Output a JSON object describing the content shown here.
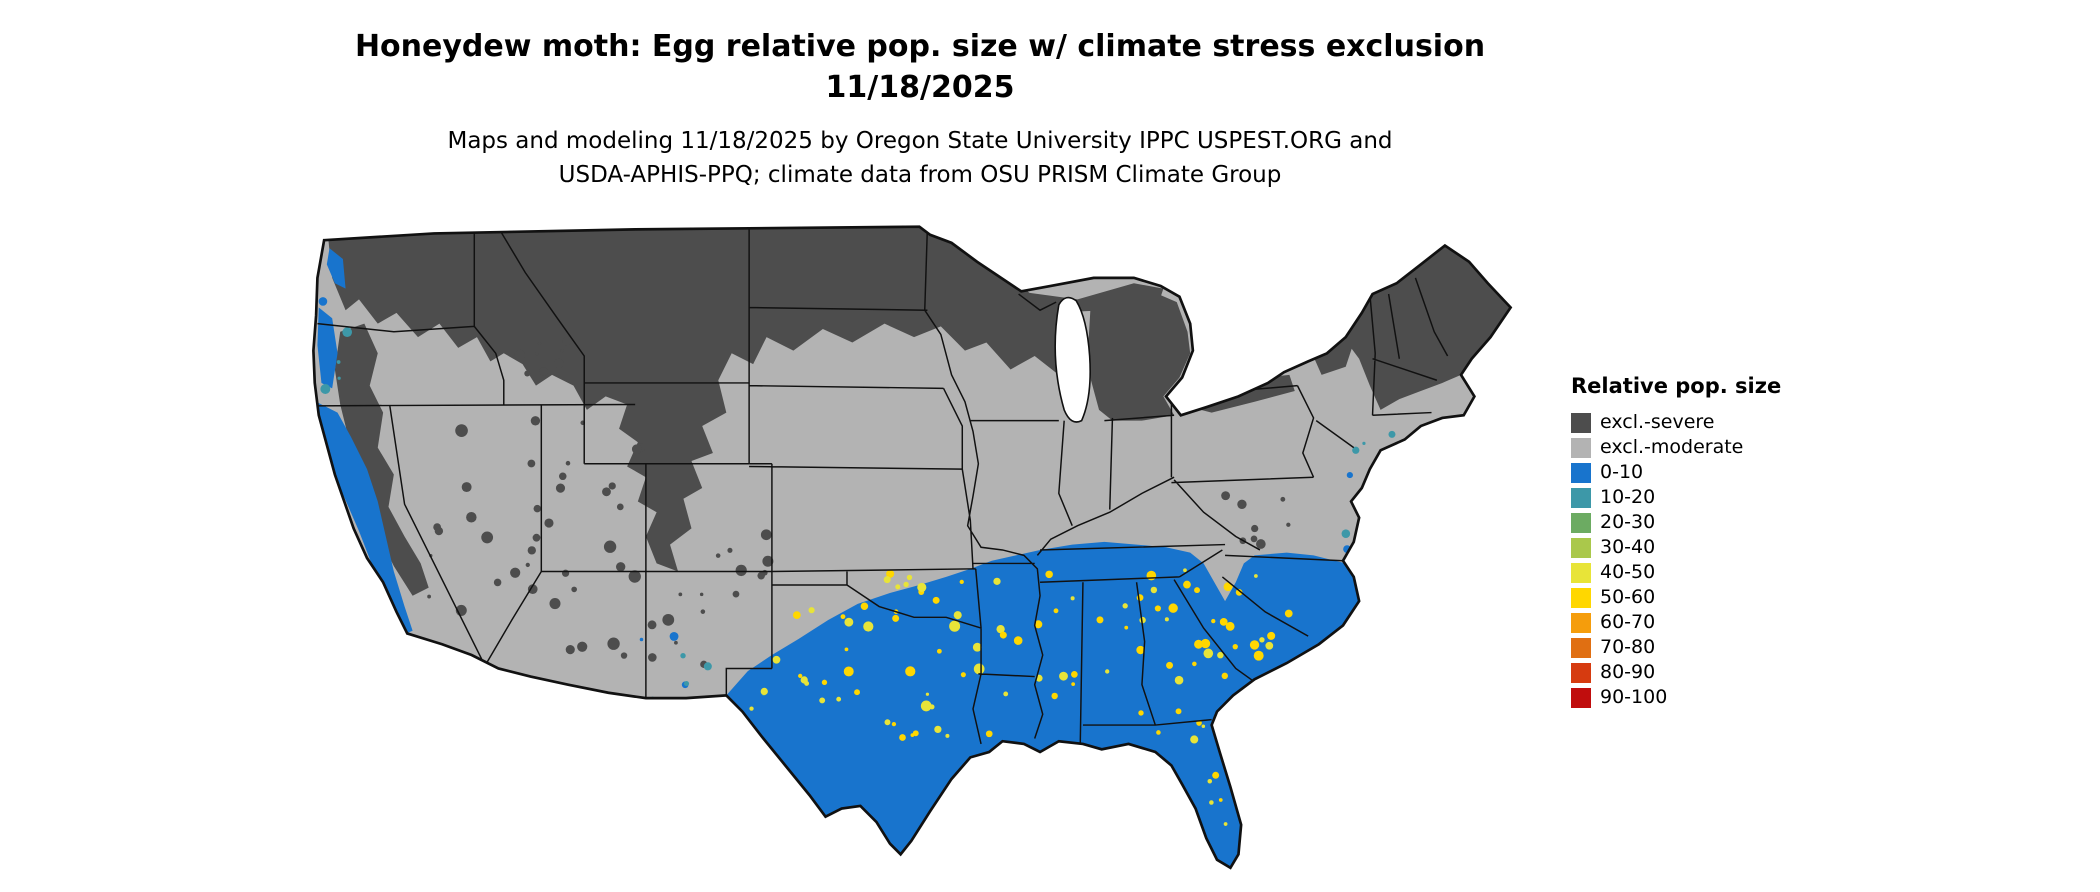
{
  "header": {
    "title_line1": "Honeydew moth: Egg relative pop. size w/ climate stress exclusion",
    "title_line2": "11/18/2025",
    "subtitle_line1": "Maps and modeling 11/18/2025 by Oregon State University IPPC USPEST.ORG and",
    "subtitle_line2": "USDA-APHIS-PPQ; climate data from OSU PRISM Climate Group"
  },
  "legend": {
    "title": "Relative pop. size",
    "items": [
      {
        "label": "excl.-severe",
        "color": "#4d4d4d"
      },
      {
        "label": "excl.-moderate",
        "color": "#b3b3b3"
      },
      {
        "label": "0-10",
        "color": "#1874cd"
      },
      {
        "label": "10-20",
        "color": "#3d98a8"
      },
      {
        "label": "20-30",
        "color": "#6cab62"
      },
      {
        "label": "30-40",
        "color": "#aac84b"
      },
      {
        "label": "40-50",
        "color": "#e8e438"
      },
      {
        "label": "50-60",
        "color": "#ffd700"
      },
      {
        "label": "60-70",
        "color": "#f59d0c"
      },
      {
        "label": "70-80",
        "color": "#e06f12"
      },
      {
        "label": "80-90",
        "color": "#d63b10"
      },
      {
        "label": "90-100",
        "color": "#c00d0d"
      }
    ]
  },
  "map": {
    "colors": {
      "excluded_severe": "#4d4d4d",
      "excluded_moderate": "#b3b3b3",
      "pop_0_10": "#1874cd",
      "pop_10_20": "#3d98a8",
      "speckle_40_50": "#e8e438",
      "speckle_50_60": "#ffd700",
      "border": "#111111",
      "water": "#ffffff"
    }
  }
}
